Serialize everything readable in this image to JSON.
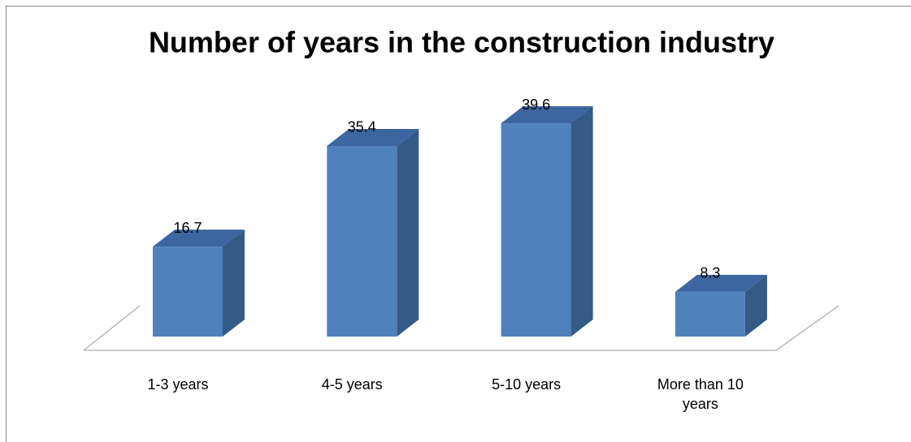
{
  "chart_data": {
    "type": "bar3d",
    "title": "Number of years in the construction industry",
    "categories": [
      "1-3 years",
      "4-5 years",
      "5-10 years",
      "More than 10 years"
    ],
    "values": [
      16.7,
      35.4,
      39.6,
      8.3
    ],
    "color": "#4f81bd"
  }
}
